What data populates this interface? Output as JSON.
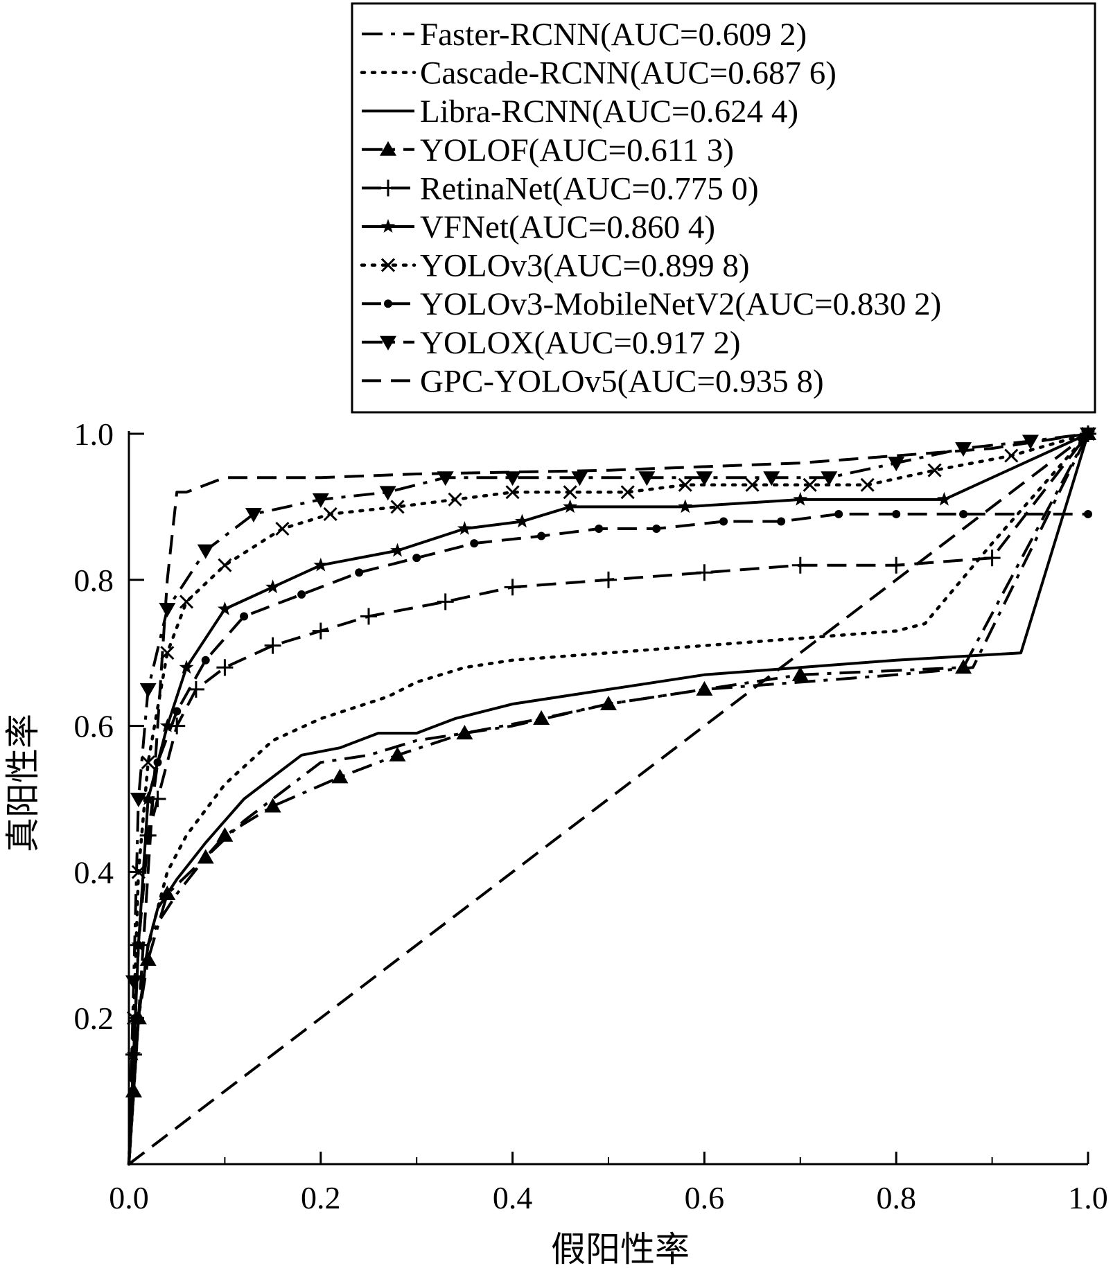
{
  "chart_data": {
    "type": "line",
    "title": "",
    "xlabel": "假阳性率",
    "ylabel": "真阳性率",
    "xlim": [
      0,
      1
    ],
    "ylim": [
      0,
      1
    ],
    "xticks": [
      "0.0",
      "0.2",
      "0.4",
      "0.6",
      "0.8",
      "1.0"
    ],
    "yticks": [
      "0.2",
      "0.4",
      "0.6",
      "0.8",
      "1.0"
    ],
    "grid": false,
    "legend_position": "top-right",
    "series": [
      {
        "name": "Faster-RCNN(AUC=0.609 2)",
        "style": "dash-dot",
        "marker": "none",
        "x": [
          0.0,
          0.005,
          0.01,
          0.02,
          0.03,
          0.05,
          0.08,
          0.12,
          0.16,
          0.2,
          0.25,
          0.3,
          0.4,
          0.5,
          0.6,
          0.7,
          0.8,
          0.88,
          1.0
        ],
        "y": [
          0.0,
          0.1,
          0.2,
          0.3,
          0.33,
          0.37,
          0.42,
          0.47,
          0.51,
          0.55,
          0.56,
          0.58,
          0.6,
          0.63,
          0.65,
          0.66,
          0.67,
          0.68,
          1.0
        ]
      },
      {
        "name": "Cascade-RCNN(AUC=0.687 6)",
        "style": "dotted",
        "marker": "none",
        "x": [
          0.0,
          0.005,
          0.01,
          0.02,
          0.04,
          0.06,
          0.1,
          0.15,
          0.2,
          0.27,
          0.3,
          0.35,
          0.4,
          0.5,
          0.6,
          0.7,
          0.8,
          0.83,
          0.9,
          1.0
        ],
        "y": [
          0.0,
          0.1,
          0.2,
          0.3,
          0.4,
          0.45,
          0.52,
          0.58,
          0.61,
          0.64,
          0.66,
          0.68,
          0.69,
          0.7,
          0.71,
          0.72,
          0.73,
          0.74,
          0.85,
          1.0
        ]
      },
      {
        "name": "Libra-RCNN(AUC=0.624 4)",
        "style": "solid",
        "marker": "none",
        "x": [
          0.0,
          0.005,
          0.01,
          0.02,
          0.03,
          0.05,
          0.08,
          0.1,
          0.12,
          0.16,
          0.18,
          0.22,
          0.26,
          0.3,
          0.34,
          0.4,
          0.5,
          0.6,
          0.7,
          0.8,
          0.93,
          1.0
        ],
        "y": [
          0.0,
          0.1,
          0.2,
          0.3,
          0.35,
          0.39,
          0.44,
          0.47,
          0.5,
          0.54,
          0.56,
          0.57,
          0.59,
          0.59,
          0.61,
          0.63,
          0.65,
          0.67,
          0.68,
          0.69,
          0.7,
          1.0
        ]
      },
      {
        "name": "YOLOF(AUC=0.611 3)",
        "style": "dash-dot",
        "marker": "triangle-up",
        "x": [
          0.0,
          0.005,
          0.01,
          0.02,
          0.04,
          0.08,
          0.1,
          0.15,
          0.22,
          0.28,
          0.35,
          0.43,
          0.5,
          0.6,
          0.7,
          0.87,
          1.0
        ],
        "y": [
          0.0,
          0.1,
          0.2,
          0.28,
          0.37,
          0.42,
          0.45,
          0.49,
          0.53,
          0.56,
          0.59,
          0.61,
          0.63,
          0.65,
          0.67,
          0.68,
          1.0
        ]
      },
      {
        "name": "RetinaNet(AUC=0.775 0)",
        "style": "long-dash",
        "marker": "plus",
        "x": [
          0.0,
          0.005,
          0.01,
          0.02,
          0.03,
          0.05,
          0.07,
          0.1,
          0.15,
          0.2,
          0.25,
          0.33,
          0.4,
          0.5,
          0.6,
          0.7,
          0.8,
          0.9,
          1.0
        ],
        "y": [
          0.0,
          0.15,
          0.3,
          0.45,
          0.5,
          0.6,
          0.65,
          0.68,
          0.71,
          0.73,
          0.75,
          0.77,
          0.79,
          0.8,
          0.81,
          0.82,
          0.82,
          0.83,
          1.0
        ]
      },
      {
        "name": "VFNet(AUC=0.860 4)",
        "style": "solid",
        "marker": "star",
        "x": [
          0.0,
          0.005,
          0.01,
          0.02,
          0.04,
          0.06,
          0.1,
          0.15,
          0.2,
          0.28,
          0.35,
          0.41,
          0.46,
          0.58,
          0.7,
          0.85,
          1.0
        ],
        "y": [
          0.0,
          0.15,
          0.3,
          0.5,
          0.6,
          0.68,
          0.76,
          0.79,
          0.82,
          0.84,
          0.87,
          0.88,
          0.9,
          0.9,
          0.91,
          0.91,
          1.0
        ]
      },
      {
        "name": "YOLOv3(AUC=0.899 8)",
        "style": "dotted",
        "marker": "x",
        "x": [
          0.0,
          0.005,
          0.01,
          0.02,
          0.04,
          0.06,
          0.1,
          0.16,
          0.21,
          0.28,
          0.34,
          0.4,
          0.46,
          0.52,
          0.58,
          0.65,
          0.71,
          0.77,
          0.84,
          0.92,
          1.0
        ],
        "y": [
          0.0,
          0.2,
          0.4,
          0.55,
          0.7,
          0.77,
          0.82,
          0.87,
          0.89,
          0.9,
          0.91,
          0.92,
          0.92,
          0.92,
          0.93,
          0.93,
          0.93,
          0.93,
          0.95,
          0.97,
          1.0
        ]
      },
      {
        "name": "YOLOv3-MobileNetV2(AUC=0.830 2)",
        "style": "long-dash",
        "marker": "dot",
        "x": [
          0.0,
          0.005,
          0.01,
          0.02,
          0.03,
          0.05,
          0.08,
          0.12,
          0.18,
          0.24,
          0.3,
          0.36,
          0.43,
          0.49,
          0.55,
          0.62,
          0.68,
          0.74,
          0.8,
          0.87,
          1.0
        ],
        "y": [
          0.0,
          0.15,
          0.3,
          0.45,
          0.55,
          0.62,
          0.69,
          0.75,
          0.78,
          0.81,
          0.83,
          0.85,
          0.86,
          0.87,
          0.87,
          0.88,
          0.88,
          0.89,
          0.89,
          0.89,
          0.89
        ]
      },
      {
        "name": "YOLOX(AUC=0.917 2)",
        "style": "dash-dot",
        "marker": "triangle-down",
        "x": [
          0.0,
          0.005,
          0.01,
          0.02,
          0.04,
          0.08,
          0.13,
          0.2,
          0.27,
          0.33,
          0.4,
          0.47,
          0.54,
          0.6,
          0.67,
          0.73,
          0.8,
          0.87,
          0.94,
          1.0
        ],
        "y": [
          0.0,
          0.25,
          0.5,
          0.65,
          0.76,
          0.84,
          0.89,
          0.91,
          0.92,
          0.94,
          0.94,
          0.94,
          0.94,
          0.94,
          0.94,
          0.94,
          0.96,
          0.98,
          0.99,
          1.0
        ]
      },
      {
        "name": "GPC-YOLOv5(AUC=0.935 8)",
        "style": "long-dash",
        "marker": "none",
        "x": [
          0.0,
          0.01,
          0.02,
          0.03,
          0.04,
          0.05,
          0.06,
          0.1,
          0.15,
          0.2,
          0.3,
          0.5,
          0.7,
          0.9,
          1.0
        ],
        "y": [
          0.0,
          0.2,
          0.4,
          0.6,
          0.8,
          0.92,
          0.92,
          0.94,
          0.94,
          0.94,
          0.945,
          0.95,
          0.96,
          0.98,
          1.0
        ]
      },
      {
        "name": "",
        "style": "long-dash",
        "marker": "none",
        "x": [
          0.0,
          1.0
        ],
        "y": [
          0.0,
          1.0
        ]
      }
    ]
  }
}
